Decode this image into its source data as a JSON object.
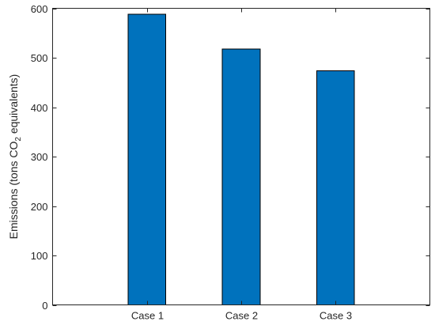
{
  "chart_data": {
    "type": "bar",
    "categories": [
      "Case 1",
      "Case 2",
      "Case 3"
    ],
    "values": [
      588,
      518,
      474
    ],
    "title": "",
    "xlabel": "",
    "ylabel": {
      "prefix": "Emissions (tons CO",
      "subscript": "2",
      "suffix": " equivalents)"
    },
    "ylim": [
      0,
      600
    ],
    "yticks": [
      0,
      100,
      200,
      300,
      400,
      500,
      600
    ],
    "grid": false,
    "bar_color": "#0072BD",
    "edge_color": "#000000",
    "axis_color": "#262626"
  }
}
